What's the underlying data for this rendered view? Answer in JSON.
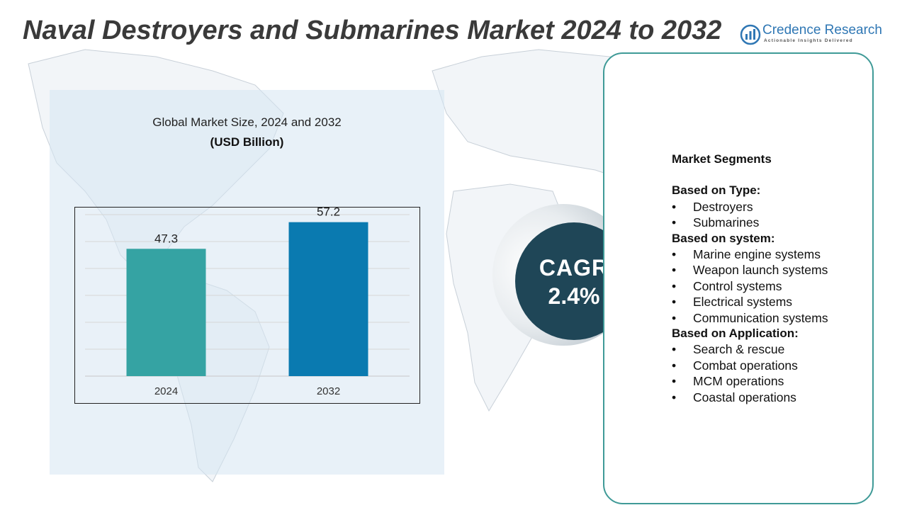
{
  "title": "Naval Destroyers and Submarines Market 2024 to 2032",
  "logo": {
    "name": "Credence Research",
    "tagline": "Actionable Insights Delivered",
    "icon": "credence-logo-icon",
    "color": "#2f77b4"
  },
  "colors": {
    "bar_2024": "#35a3a3",
    "bar_2032": "#0a7ab0",
    "cagr_circle": "#1f4657",
    "card_border": "#3f9a97",
    "title": "#3a3a3a"
  },
  "chart_data": {
    "type": "bar",
    "title": "Global Market Size, 2024 and 2032",
    "subtitle": "(USD Billion)",
    "categories": [
      "2024",
      "2032"
    ],
    "values": [
      47.3,
      57.2
    ],
    "ylim": [
      0,
      60
    ],
    "grid": true
  },
  "cagr": {
    "label": "CAGR",
    "value": "2.4%"
  },
  "segments": {
    "heading": "Market Segments",
    "groups": [
      {
        "title": "Based on Type:",
        "items": [
          "Destroyers",
          "Submarines"
        ]
      },
      {
        "title": "Based on system:",
        "items": [
          "Marine engine systems",
          "Weapon launch systems",
          "Control systems",
          "Electrical systems",
          "Communication systems"
        ]
      },
      {
        "title": "Based on Application:",
        "items": [
          "Search & rescue",
          "Combat operations",
          "MCM operations",
          "Coastal operations"
        ]
      }
    ]
  }
}
